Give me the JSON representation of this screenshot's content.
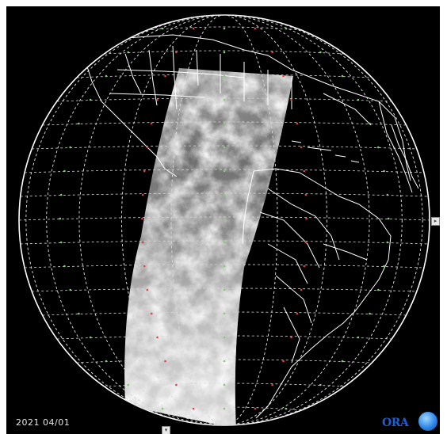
{
  "viewer": {
    "date": "2021 04/01",
    "logo_text": "ORA",
    "icons": {
      "right_handle": "arrow-right-icon",
      "bottom_handle": "arrow-down-icon",
      "logo": "noaa-logo-icon"
    }
  },
  "colors": {
    "background": "#000000",
    "coastline": "#ffffff",
    "graticule": "#d8d8d8",
    "lat_label": "#7ad36b",
    "lon_label": "#e04545",
    "logo_blue": "#1b5fd1"
  }
}
